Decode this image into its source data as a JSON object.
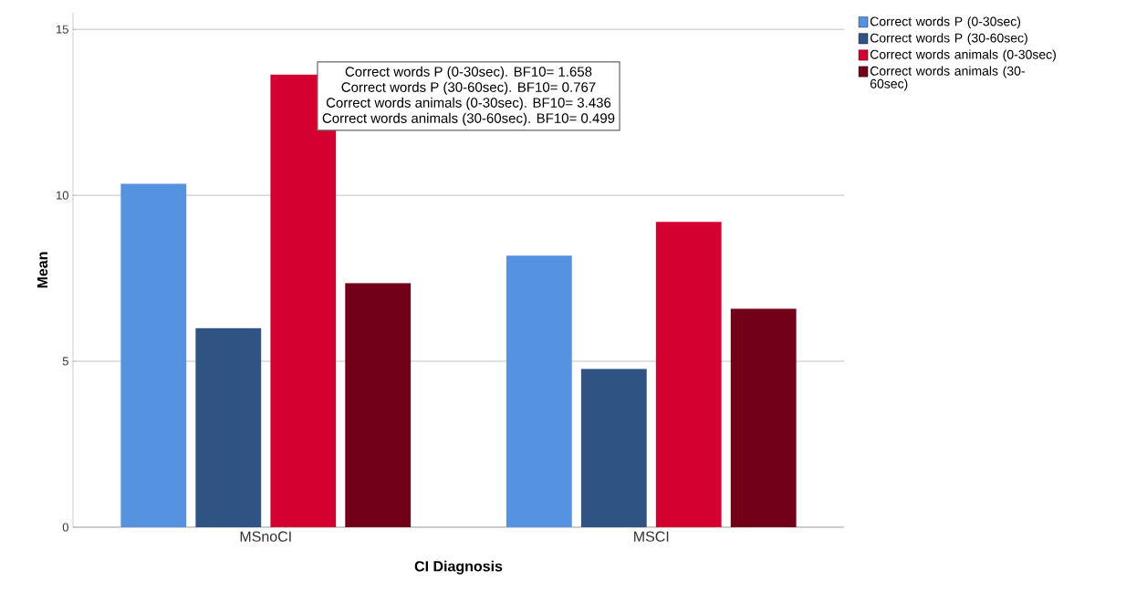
{
  "chart_data": {
    "type": "bar",
    "xlabel": "CI Diagnosis",
    "ylabel": "Mean",
    "categories": [
      "MSnoCI",
      "MSCI"
    ],
    "series": [
      {
        "name": "Correct words P (0-30sec)",
        "color": "#5592e0",
        "values": [
          10.35,
          8.18
        ]
      },
      {
        "name": "Correct words P (30-60sec)",
        "color": "#2f5382",
        "values": [
          6.0,
          4.77
        ]
      },
      {
        "name": "Correct words animals (0-30sec)",
        "color": "#d40030",
        "values": [
          13.64,
          9.2
        ]
      },
      {
        "name": "Correct words animals (30-60sec)",
        "color": "#720019",
        "values": [
          7.36,
          6.58
        ]
      }
    ],
    "ylim": [
      0,
      15.5
    ],
    "yticks": [
      0,
      5,
      10,
      15
    ],
    "grid": "y",
    "legend": "top right",
    "annotations": [
      "Correct words P (0-30sec). BF10= 1.658",
      "Correct words P (30-60sec). BF10= 0.767",
      "Correct words animals (0-30sec). BF10= 3.436",
      "Correct words animals (30-60sec). BF10= 0.499"
    ]
  }
}
